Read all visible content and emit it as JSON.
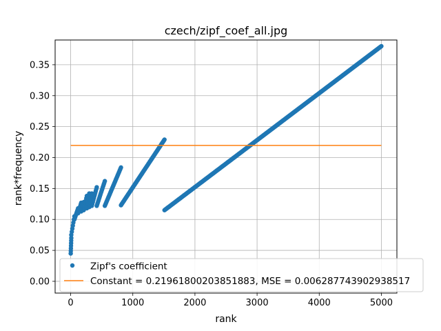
{
  "colors": {
    "points": "#1f77b4",
    "constant": "#ff7f0e",
    "grid": "#b0b0b0",
    "axis": "#000000"
  },
  "chart_data": {
    "type": "scatter",
    "title": "czech/zipf_coef_all.jpg",
    "xlabel": "rank",
    "ylabel": "rank*frequency",
    "xlim": [
      -250,
      5250
    ],
    "ylim": [
      -0.019,
      0.39
    ],
    "xticks": [
      0,
      1000,
      2000,
      3000,
      4000,
      5000
    ],
    "xtick_labels": [
      "0",
      "1000",
      "2000",
      "3000",
      "4000",
      "5000"
    ],
    "yticks": [
      0.0,
      0.05,
      0.1,
      0.15,
      0.2,
      0.25,
      0.3,
      0.35
    ],
    "ytick_labels": [
      "0.00",
      "0.05",
      "0.10",
      "0.15",
      "0.20",
      "0.25",
      "0.30",
      "0.35"
    ],
    "grid": true,
    "legend_position": "lower-right",
    "series": [
      {
        "name": "Zipf's coefficient",
        "kind": "points",
        "segments": [
          {
            "x_start": 1,
            "x_end": 10,
            "y_start": 0.045,
            "y_end": 0.07
          },
          {
            "x_start": 10,
            "x_end": 60,
            "y_start": 0.075,
            "y_end": 0.105
          },
          {
            "x_start": 60,
            "x_end": 120,
            "y_start": 0.1,
            "y_end": 0.118
          },
          {
            "x_start": 120,
            "x_end": 170,
            "y_start": 0.11,
            "y_end": 0.127
          },
          {
            "x_start": 170,
            "x_end": 210,
            "y_start": 0.113,
            "y_end": 0.128
          },
          {
            "x_start": 210,
            "x_end": 260,
            "y_start": 0.115,
            "y_end": 0.138
          },
          {
            "x_start": 260,
            "x_end": 300,
            "y_start": 0.118,
            "y_end": 0.142
          },
          {
            "x_start": 300,
            "x_end": 340,
            "y_start": 0.12,
            "y_end": 0.142
          },
          {
            "x_start": 340,
            "x_end": 420,
            "y_start": 0.122,
            "y_end": 0.152
          },
          {
            "x_start": 420,
            "x_end": 550,
            "y_start": 0.122,
            "y_end": 0.162
          },
          {
            "x_start": 550,
            "x_end": 810,
            "y_start": 0.122,
            "y_end": 0.184
          },
          {
            "x_start": 810,
            "x_end": 1510,
            "y_start": 0.123,
            "y_end": 0.229
          },
          {
            "x_start": 1510,
            "x_end": 5000,
            "y_start": 0.115,
            "y_end": 0.38
          }
        ]
      },
      {
        "name": "Constant = 0.21961800203851883, MSE = 0.006287743902938517",
        "kind": "line",
        "x": [
          1,
          5000
        ],
        "y": [
          0.21961800203851883,
          0.21961800203851883
        ]
      }
    ]
  }
}
